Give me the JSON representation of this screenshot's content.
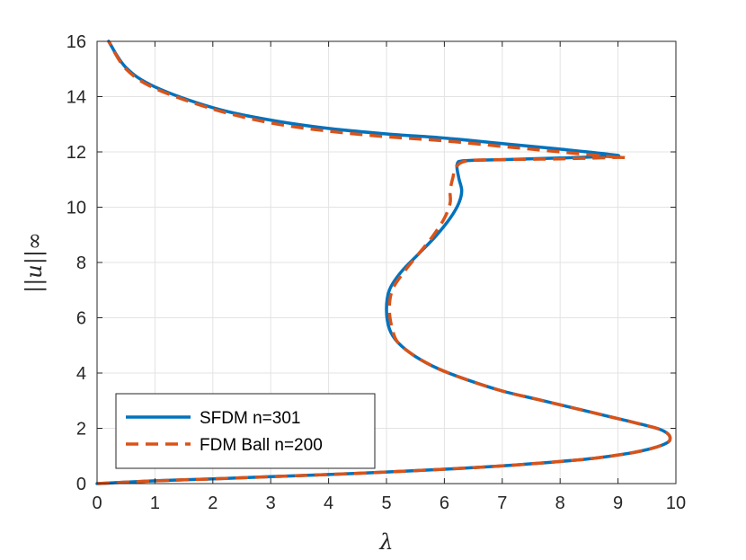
{
  "chart_data": {
    "type": "line",
    "xlabel": "λ",
    "ylabel": "||u||∞",
    "xlim": [
      0,
      10
    ],
    "ylim": [
      0,
      16
    ],
    "xticks": [
      0,
      1,
      2,
      3,
      4,
      5,
      6,
      7,
      8,
      9,
      10
    ],
    "yticks": [
      0,
      2,
      4,
      6,
      8,
      10,
      12,
      14,
      16
    ],
    "grid": true,
    "legend_position": "bottom-left",
    "series": [
      {
        "name": "SFDM n=301",
        "color": "#0072BD",
        "style": "solid",
        "x": [
          0.0,
          1.0,
          2.0,
          3.0,
          4.0,
          5.0,
          6.0,
          7.0,
          8.0,
          8.6,
          9.2,
          9.6,
          9.85,
          9.9,
          9.85,
          9.7,
          9.3,
          8.8,
          8.2,
          7.6,
          7.0,
          6.4,
          5.9,
          5.5,
          5.2,
          5.05,
          5.0,
          5.05,
          5.25,
          5.55,
          5.85,
          6.1,
          6.25,
          6.3,
          6.25,
          6.22,
          6.35,
          7.0,
          8.0,
          8.9,
          8.9,
          8.0,
          7.0,
          6.0,
          5.0,
          4.0,
          3.0,
          2.0,
          1.0,
          0.5,
          0.2
        ],
        "y": [
          0.0,
          0.1,
          0.17,
          0.25,
          0.33,
          0.42,
          0.52,
          0.64,
          0.8,
          0.92,
          1.1,
          1.28,
          1.48,
          1.65,
          1.82,
          1.98,
          2.2,
          2.45,
          2.75,
          3.05,
          3.35,
          3.75,
          4.15,
          4.6,
          5.1,
          5.6,
          6.3,
          7.0,
          7.65,
          8.3,
          8.95,
          9.6,
          10.15,
          10.6,
          11.05,
          11.55,
          11.68,
          11.72,
          11.78,
          11.85,
          11.9,
          12.1,
          12.3,
          12.5,
          12.65,
          12.85,
          13.15,
          13.6,
          14.35,
          15.05,
          16.0
        ]
      },
      {
        "name": "FDM Ball n=200",
        "color": "#D95319",
        "style": "dashed",
        "x": [
          0.0,
          1.0,
          2.0,
          3.0,
          4.0,
          5.0,
          6.0,
          7.0,
          8.0,
          8.6,
          9.2,
          9.6,
          9.85,
          9.9,
          9.85,
          9.7,
          9.3,
          8.8,
          8.2,
          7.6,
          7.0,
          6.4,
          5.9,
          5.5,
          5.2,
          5.1,
          5.05,
          5.1,
          5.3,
          5.55,
          5.8,
          6.0,
          6.1,
          6.1,
          6.15,
          6.2,
          6.4,
          7.0,
          8.0,
          9.0,
          9.0,
          8.0,
          7.0,
          6.0,
          5.0,
          4.0,
          3.0,
          2.0,
          1.0,
          0.5,
          0.2
        ],
        "y": [
          0.0,
          0.1,
          0.17,
          0.25,
          0.33,
          0.42,
          0.52,
          0.64,
          0.8,
          0.92,
          1.1,
          1.28,
          1.48,
          1.65,
          1.82,
          1.98,
          2.2,
          2.45,
          2.75,
          3.05,
          3.35,
          3.75,
          4.15,
          4.6,
          5.1,
          5.6,
          6.3,
          7.0,
          7.65,
          8.3,
          8.95,
          9.6,
          10.15,
          10.6,
          11.1,
          11.45,
          11.68,
          11.72,
          11.75,
          11.8,
          11.8,
          12.0,
          12.2,
          12.4,
          12.55,
          12.75,
          13.05,
          13.55,
          14.3,
          15.0,
          16.0
        ]
      }
    ]
  }
}
